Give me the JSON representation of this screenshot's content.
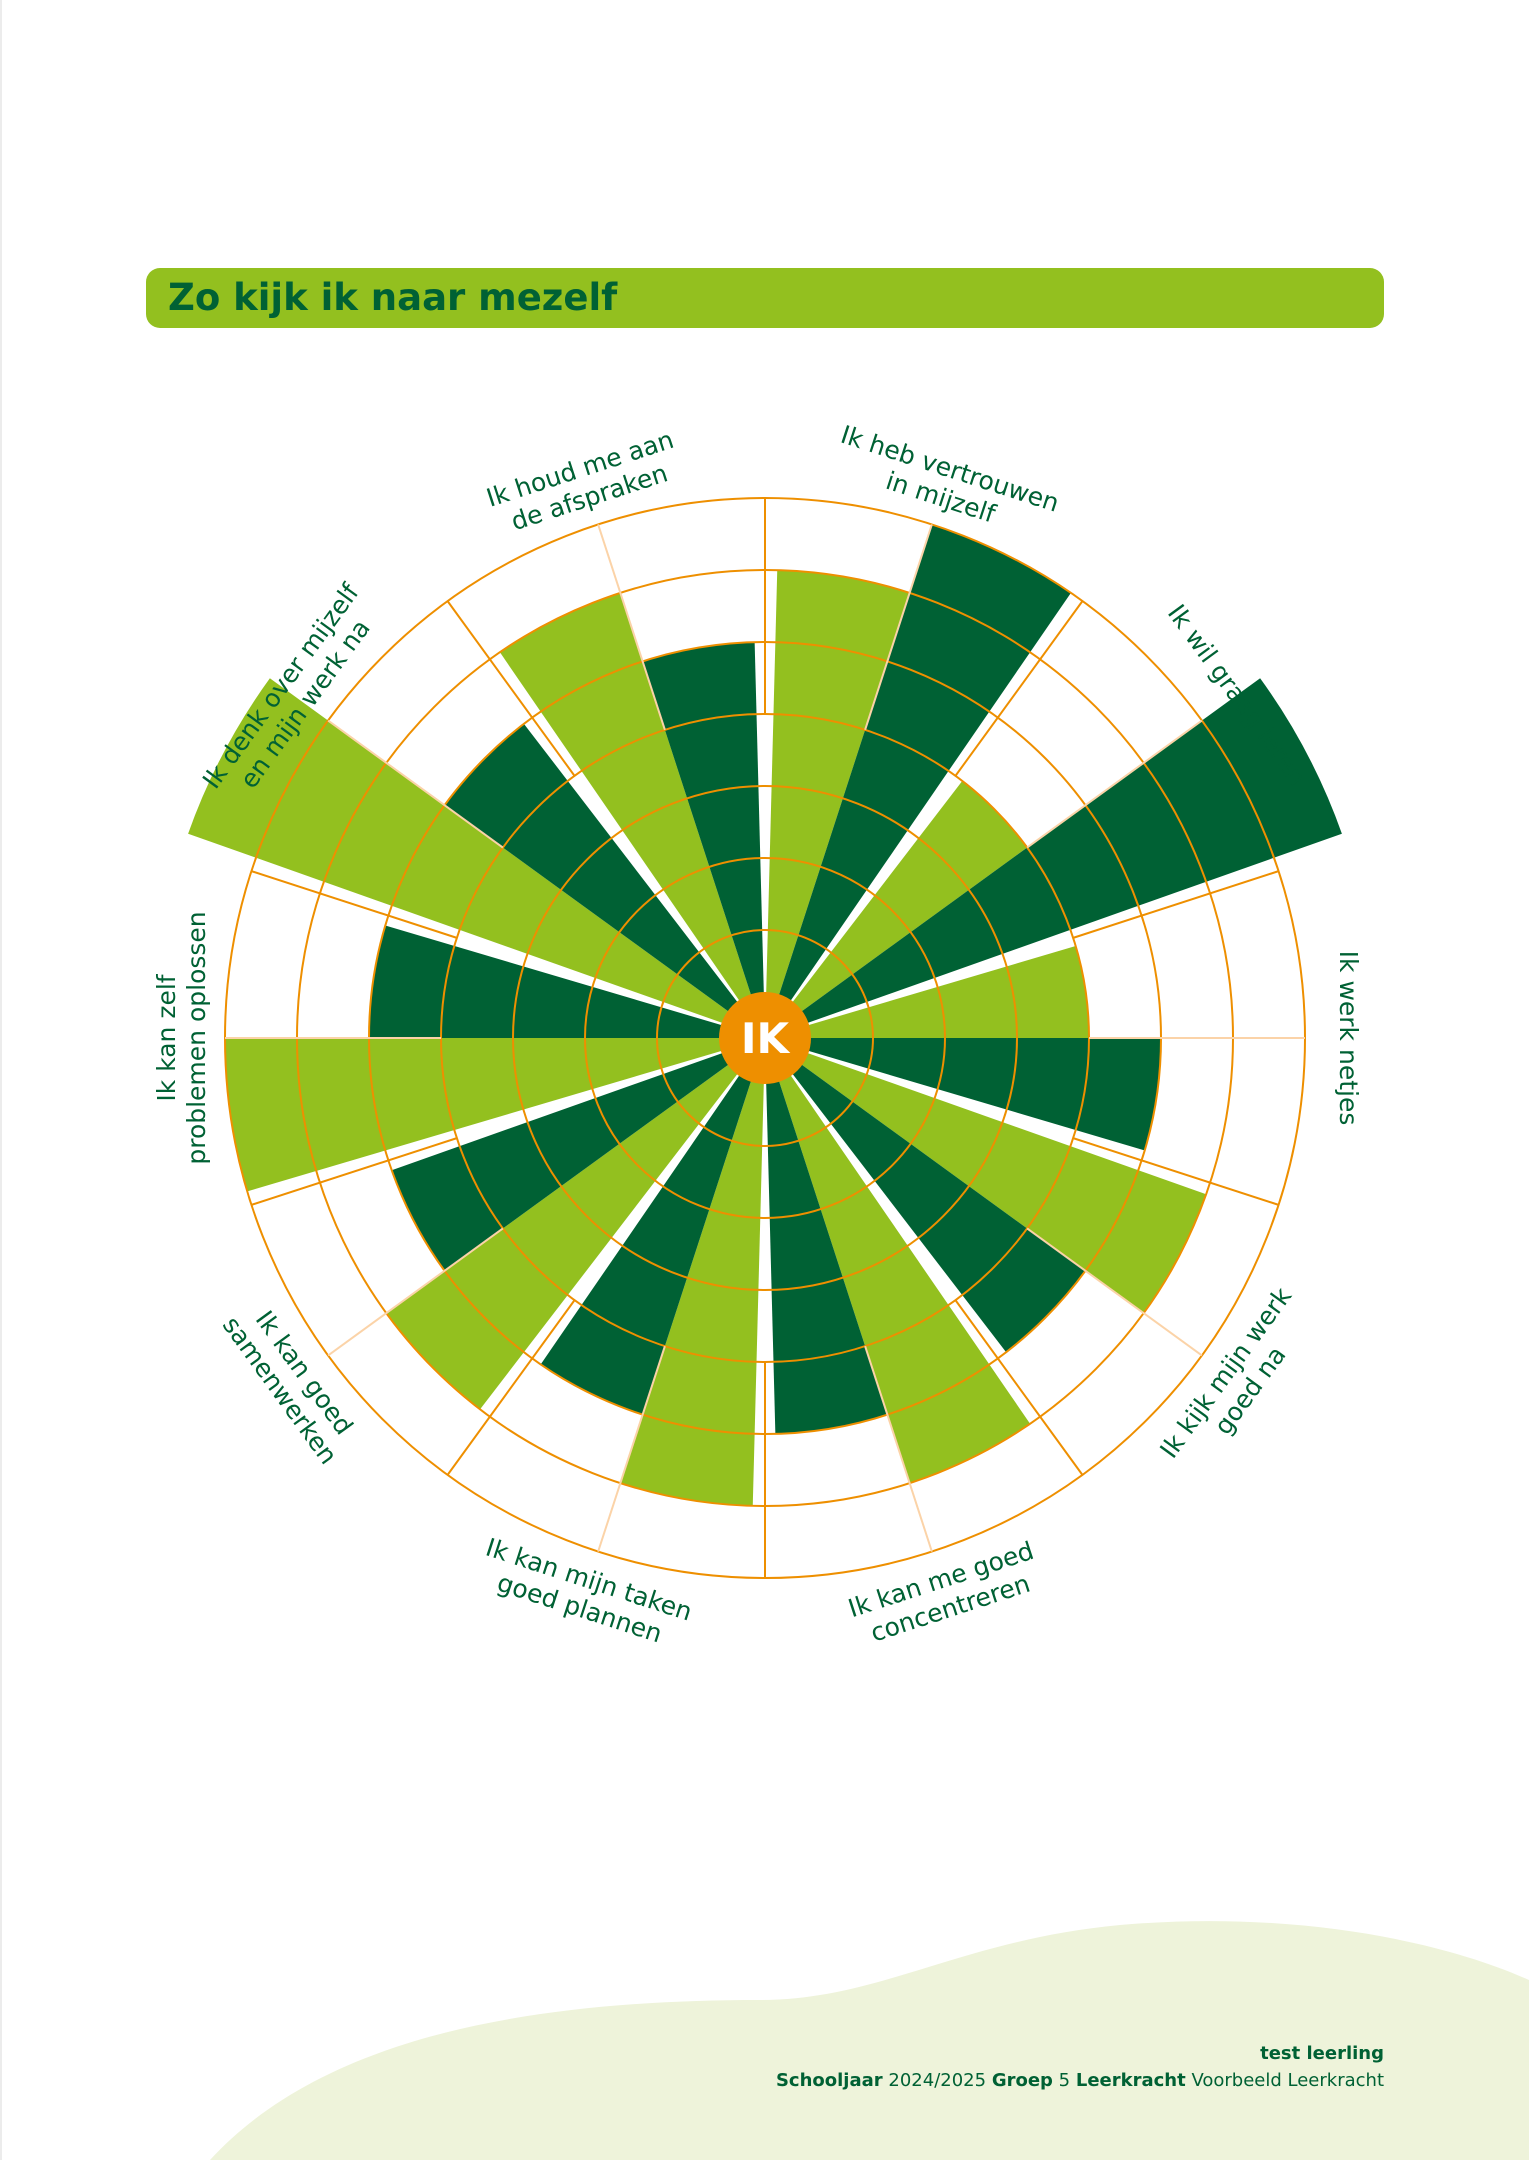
{
  "page_title": "Zo kijk ik naar mezelf",
  "colors": {
    "primary_green": "#93c01f",
    "dark_green": "#006134",
    "orange": "#ee8f00",
    "light_orange": "#fbd3a8",
    "footer_wave": "#eef3da"
  },
  "chart_data": {
    "type": "polar-bar",
    "center_label": "IK",
    "rmax": 7,
    "categories": [
      {
        "lines": [
          "Ik heb vertrouwen",
          "in mijzelf"
        ]
      },
      {
        "lines": [
          "Ik wil graag leren"
        ]
      },
      {
        "lines": [
          "Ik werk netjes"
        ]
      },
      {
        "lines": [
          "Ik kijk mijn werk",
          "goed na"
        ]
      },
      {
        "lines": [
          "Ik kan me goed",
          "concentreren"
        ]
      },
      {
        "lines": [
          "Ik kan mijn taken",
          "goed plannen"
        ]
      },
      {
        "lines": [
          "Ik kan goed",
          "samenwerken"
        ]
      },
      {
        "lines": [
          "Ik kan zelf",
          "problemen oplossen"
        ]
      },
      {
        "lines": [
          "Ik denk over mijzelf",
          "en mijn werk na"
        ]
      },
      {
        "lines": [
          "Ik houd me aan",
          "de afspraken"
        ]
      }
    ],
    "series": [
      {
        "color": "#93c01f",
        "values": [
          6,
          4,
          4,
          6,
          6,
          6,
          6,
          7,
          8,
          6
        ]
      },
      {
        "color": "#006134",
        "values": [
          7,
          8,
          5,
          5,
          5,
          5,
          5,
          5,
          5,
          5
        ]
      }
    ]
  },
  "footer": {
    "student_name": "test leerling",
    "schoolyear_label": "Schooljaar",
    "schoolyear_value": "2024/2025",
    "group_label": "Groep",
    "group_value": "5",
    "teacher_label": "Leerkracht",
    "teacher_value": "Voorbeeld Leerkracht"
  }
}
